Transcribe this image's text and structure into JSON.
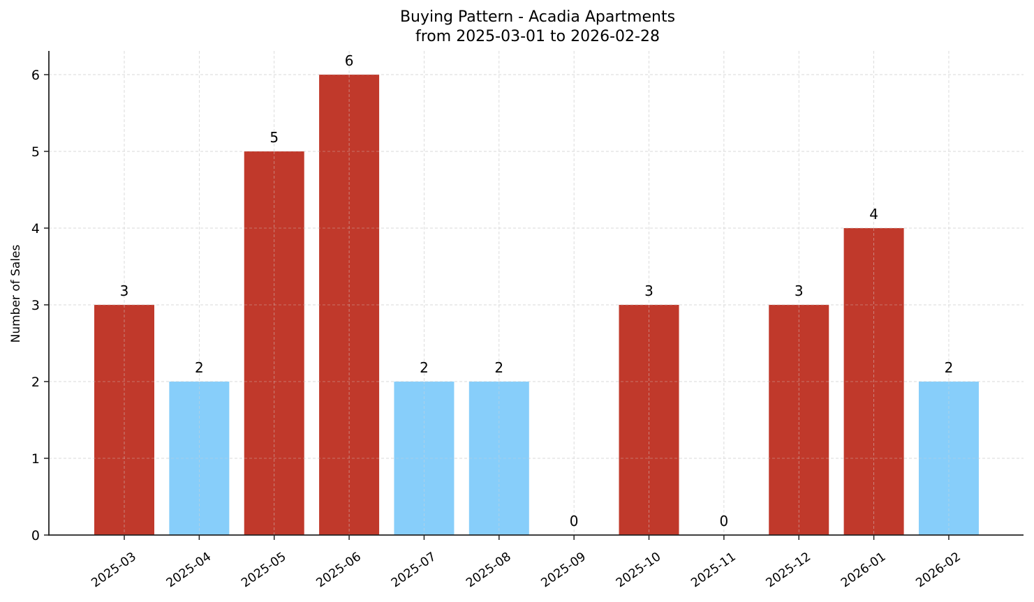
{
  "chart_data": {
    "type": "bar",
    "title": "Buying Pattern - Acadia Apartments",
    "subtitle": "from 2025-03-01 to 2026-02-28",
    "xlabel": "",
    "ylabel": "Number of Sales",
    "categories": [
      "2025-03",
      "2025-04",
      "2025-05",
      "2025-06",
      "2025-07",
      "2025-08",
      "2025-09",
      "2025-10",
      "2025-11",
      "2025-12",
      "2026-01",
      "2026-02"
    ],
    "values": [
      3,
      2,
      5,
      6,
      2,
      2,
      0,
      3,
      0,
      3,
      4,
      2
    ],
    "bar_colors": [
      "#c0392b",
      "#87cefa",
      "#c0392b",
      "#c0392b",
      "#87cefa",
      "#87cefa",
      "#87cefa",
      "#c0392b",
      "#87cefa",
      "#c0392b",
      "#c0392b",
      "#87cefa"
    ],
    "yticks": [
      0,
      1,
      2,
      3,
      4,
      5,
      6
    ],
    "ylim": [
      0,
      6.3
    ],
    "grid": true,
    "data_labels": true,
    "legend": null
  },
  "colors": {
    "high": "#c0392b",
    "low": "#87cefa",
    "grid": "#d3d3d3",
    "axis": "#222222"
  }
}
